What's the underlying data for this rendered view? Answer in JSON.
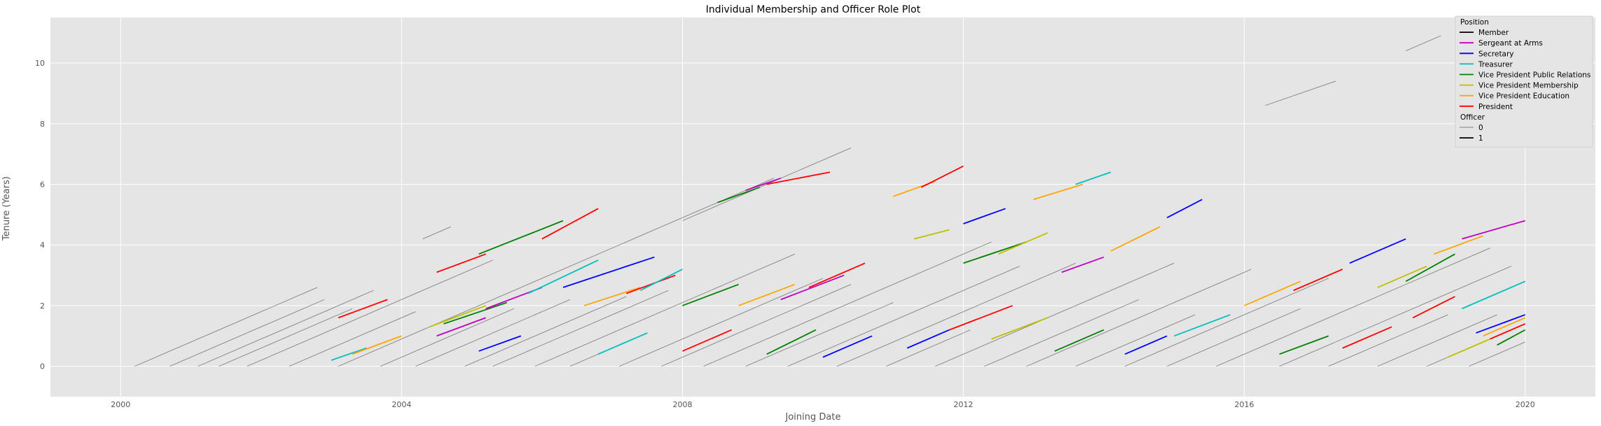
{
  "chart_data": {
    "type": "line",
    "title": "Individual Membership and Officer Role Plot",
    "xlabel": "Joining Date",
    "ylabel": "Tenure (Years)",
    "xlim": [
      1999.0,
      2021.0
    ],
    "ylim": [
      -1.0,
      11.5
    ],
    "xticks": [
      2000,
      2004,
      2008,
      2012,
      2016,
      2020
    ],
    "xtick_labels": [
      "2000",
      "2004",
      "2008",
      "2012",
      "2016",
      "2020"
    ],
    "yticks": [
      0,
      2,
      4,
      6,
      8,
      10
    ],
    "ytick_labels": [
      "0",
      "2",
      "4",
      "6",
      "8",
      "10"
    ],
    "grid": true,
    "legend_placement": "top-right",
    "legend": {
      "position_title": "Position",
      "positions": [
        {
          "label": "Member",
          "color": "#000000"
        },
        {
          "label": "Sergeant at Arms",
          "color": "#bf00bf"
        },
        {
          "label": "Secretary",
          "color": "#0000ff"
        },
        {
          "label": "Treasurer",
          "color": "#00bfbf"
        },
        {
          "label": "Vice President Public Relations",
          "color": "#008000"
        },
        {
          "label": "Vice President Membership",
          "color": "#bfbf00"
        },
        {
          "label": "Vice President Education",
          "color": "#ffa500"
        },
        {
          "label": "President",
          "color": "#ff0000"
        }
      ],
      "officer_title": "Officer",
      "officer": [
        {
          "label": "0",
          "color": "#808080",
          "width": "thin"
        },
        {
          "label": "1",
          "color": "#000000",
          "width": "thick"
        }
      ]
    },
    "member_lines": [
      {
        "x": [
          2000.2,
          2002.8
        ],
        "y": [
          0,
          2.6
        ]
      },
      {
        "x": [
          2000.7,
          2002.9
        ],
        "y": [
          0,
          2.2
        ]
      },
      {
        "x": [
          2001.1,
          2003.6
        ],
        "y": [
          0,
          2.5
        ]
      },
      {
        "x": [
          2001.4,
          2003.3
        ],
        "y": [
          0,
          1.9
        ]
      },
      {
        "x": [
          2001.8,
          2005.3
        ],
        "y": [
          0,
          3.5
        ]
      },
      {
        "x": [
          2002.4,
          2004.2
        ],
        "y": [
          0,
          1.8
        ]
      },
      {
        "x": [
          2003.1,
          2009.3
        ],
        "y": [
          0,
          6.2
        ]
      },
      {
        "x": [
          2003.7,
          2005.6
        ],
        "y": [
          0,
          1.9
        ]
      },
      {
        "x": [
          2004.3,
          2004.7
        ],
        "y": [
          4.2,
          4.6
        ]
      },
      {
        "x": [
          2004.2,
          2006.4
        ],
        "y": [
          0,
          2.2
        ]
      },
      {
        "x": [
          2004.9,
          2007.2
        ],
        "y": [
          0,
          2.3
        ]
      },
      {
        "x": [
          2005.3,
          2007.8
        ],
        "y": [
          0,
          2.5
        ]
      },
      {
        "x": [
          2005.9,
          2009.6
        ],
        "y": [
          0,
          3.7
        ]
      },
      {
        "x": [
          2006.4,
          2007.5
        ],
        "y": [
          0,
          1.1
        ]
      },
      {
        "x": [
          2007.1,
          2010.0
        ],
        "y": [
          0,
          2.9
        ]
      },
      {
        "x": [
          2007.7,
          2010.4
        ],
        "y": [
          0,
          2.7
        ]
      },
      {
        "x": [
          2008.0,
          2010.4
        ],
        "y": [
          4.8,
          7.2
        ]
      },
      {
        "x": [
          2008.3,
          2012.4
        ],
        "y": [
          0,
          4.1
        ]
      },
      {
        "x": [
          2008.9,
          2011.0
        ],
        "y": [
          0,
          2.1
        ]
      },
      {
        "x": [
          2009.5,
          2012.8
        ],
        "y": [
          0,
          3.3
        ]
      },
      {
        "x": [
          2010.2,
          2013.6
        ],
        "y": [
          0,
          3.4
        ]
      },
      {
        "x": [
          2010.9,
          2012.1
        ],
        "y": [
          0,
          1.2
        ]
      },
      {
        "x": [
          2011.6,
          2015.0
        ],
        "y": [
          0,
          3.4
        ]
      },
      {
        "x": [
          2012.3,
          2014.5
        ],
        "y": [
          0,
          2.2
        ]
      },
      {
        "x": [
          2012.9,
          2016.1
        ],
        "y": [
          0,
          3.2
        ]
      },
      {
        "x": [
          2013.6,
          2015.3
        ],
        "y": [
          0,
          1.7
        ]
      },
      {
        "x": [
          2014.3,
          2017.2
        ],
        "y": [
          0,
          2.9
        ]
      },
      {
        "x": [
          2014.9,
          2016.8
        ],
        "y": [
          0,
          1.9
        ]
      },
      {
        "x": [
          2015.6,
          2019.5
        ],
        "y": [
          0,
          3.9
        ]
      },
      {
        "x": [
          2016.3,
          2017.3
        ],
        "y": [
          8.6,
          9.4
        ]
      },
      {
        "x": [
          2016.5,
          2019.8
        ],
        "y": [
          0,
          3.3
        ]
      },
      {
        "x": [
          2017.2,
          2018.9
        ],
        "y": [
          0,
          1.7
        ]
      },
      {
        "x": [
          2017.9,
          2019.6
        ],
        "y": [
          0,
          1.7
        ]
      },
      {
        "x": [
          2018.3,
          2018.8
        ],
        "y": [
          10.4,
          10.9
        ]
      },
      {
        "x": [
          2018.6,
          2019.8
        ],
        "y": [
          0,
          1.2
        ]
      },
      {
        "x": [
          2019.2,
          2020.0
        ],
        "y": [
          0,
          0.8
        ]
      }
    ],
    "role_segments": [
      {
        "position": "Treasurer",
        "x": [
          2003.0,
          2003.5
        ],
        "y": [
          0.2,
          0.6
        ]
      },
      {
        "position": "Vice President Education",
        "x": [
          2003.3,
          2004.0
        ],
        "y": [
          0.4,
          1.0
        ]
      },
      {
        "position": "President",
        "x": [
          2003.1,
          2003.8
        ],
        "y": [
          1.6,
          2.2
        ]
      },
      {
        "position": "Sergeant at Arms",
        "x": [
          2004.5,
          2005.2
        ],
        "y": [
          1.0,
          1.6
        ]
      },
      {
        "position": "Vice President Membership",
        "x": [
          2004.4,
          2005.2
        ],
        "y": [
          1.3,
          2.0
        ]
      },
      {
        "position": "Vice President Public Relations",
        "x": [
          2004.6,
          2005.5
        ],
        "y": [
          1.4,
          2.1
        ]
      },
      {
        "position": "Secretary",
        "x": [
          2005.1,
          2005.7
        ],
        "y": [
          0.5,
          1.0
        ]
      },
      {
        "position": "Sergeant at Arms",
        "x": [
          2005.2,
          2006.0
        ],
        "y": [
          1.9,
          2.6
        ]
      },
      {
        "position": "Treasurer",
        "x": [
          2005.8,
          2006.8
        ],
        "y": [
          2.4,
          3.5
        ]
      },
      {
        "position": "President",
        "x": [
          2004.5,
          2005.2
        ],
        "y": [
          3.1,
          3.7
        ]
      },
      {
        "position": "Vice President Public Relations",
        "x": [
          2005.1,
          2006.3
        ],
        "y": [
          3.7,
          4.8
        ]
      },
      {
        "position": "President",
        "x": [
          2006.0,
          2006.8
        ],
        "y": [
          4.2,
          5.2
        ]
      },
      {
        "position": "Secretary",
        "x": [
          2006.3,
          2007.6
        ],
        "y": [
          2.6,
          3.6
        ]
      },
      {
        "position": "Vice President Education",
        "x": [
          2006.6,
          2007.4
        ],
        "y": [
          2.0,
          2.6
        ]
      },
      {
        "position": "President",
        "x": [
          2007.2,
          2007.9
        ],
        "y": [
          2.4,
          3.0
        ]
      },
      {
        "position": "Treasurer",
        "x": [
          2007.4,
          2008.0
        ],
        "y": [
          2.5,
          3.2
        ]
      },
      {
        "position": "Vice President Public Relations",
        "x": [
          2008.0,
          2008.8
        ],
        "y": [
          2.0,
          2.7
        ]
      },
      {
        "position": "Vice President Education",
        "x": [
          2008.8,
          2009.6
        ],
        "y": [
          2.0,
          2.7
        ]
      },
      {
        "position": "Sergeant at Arms",
        "x": [
          2009.4,
          2010.3
        ],
        "y": [
          2.2,
          3.0
        ]
      },
      {
        "position": "President",
        "x": [
          2009.8,
          2010.6
        ],
        "y": [
          2.6,
          3.4
        ]
      },
      {
        "position": "Vice President Public Relations",
        "x": [
          2008.5,
          2009.1
        ],
        "y": [
          5.4,
          5.9
        ]
      },
      {
        "position": "Sergeant at Arms",
        "x": [
          2008.9,
          2009.4
        ],
        "y": [
          5.8,
          6.2
        ]
      },
      {
        "position": "President",
        "x": [
          2009.2,
          2010.1
        ],
        "y": [
          6.0,
          6.4
        ]
      },
      {
        "position": "Vice President Education",
        "x": [
          2011.0,
          2011.6
        ],
        "y": [
          5.6,
          6.1
        ]
      },
      {
        "position": "President",
        "x": [
          2011.4,
          2012.0
        ],
        "y": [
          5.9,
          6.6
        ]
      },
      {
        "position": "Secretary",
        "x": [
          2012.0,
          2012.6
        ],
        "y": [
          4.7,
          5.2
        ]
      },
      {
        "position": "Vice President Membership",
        "x": [
          2011.3,
          2011.8
        ],
        "y": [
          4.2,
          4.5
        ]
      },
      {
        "position": "Vice President Public Relations",
        "x": [
          2012.0,
          2012.9
        ],
        "y": [
          3.4,
          4.1
        ]
      },
      {
        "position": "Vice President Membership",
        "x": [
          2012.5,
          2013.2
        ],
        "y": [
          3.7,
          4.4
        ]
      },
      {
        "position": "Vice President Education",
        "x": [
          2013.0,
          2013.7
        ],
        "y": [
          5.5,
          6.0
        ]
      },
      {
        "position": "Treasurer",
        "x": [
          2013.6,
          2014.1
        ],
        "y": [
          6.0,
          6.4
        ]
      },
      {
        "position": "Sergeant at Arms",
        "x": [
          2013.4,
          2014.0
        ],
        "y": [
          3.1,
          3.6
        ]
      },
      {
        "position": "Vice President Education",
        "x": [
          2014.1,
          2014.8
        ],
        "y": [
          3.8,
          4.6
        ]
      },
      {
        "position": "Secretary",
        "x": [
          2014.9,
          2015.4
        ],
        "y": [
          4.9,
          5.5
        ]
      },
      {
        "position": "Vice President Education",
        "x": [
          2016.0,
          2016.8
        ],
        "y": [
          2.0,
          2.8
        ]
      },
      {
        "position": "President",
        "x": [
          2016.7,
          2017.4
        ],
        "y": [
          2.5,
          3.2
        ]
      },
      {
        "position": "Secretary",
        "x": [
          2017.5,
          2018.3
        ],
        "y": [
          3.4,
          4.2
        ]
      },
      {
        "position": "Vice President Membership",
        "x": [
          2017.9,
          2018.6
        ],
        "y": [
          2.6,
          3.3
        ]
      },
      {
        "position": "Vice President Public Relations",
        "x": [
          2018.3,
          2019.0
        ],
        "y": [
          2.8,
          3.7
        ]
      },
      {
        "position": "Vice President Education",
        "x": [
          2018.7,
          2019.4
        ],
        "y": [
          3.7,
          4.3
        ]
      },
      {
        "position": "Sergeant at Arms",
        "x": [
          2019.1,
          2020.0
        ],
        "y": [
          4.2,
          4.8
        ]
      },
      {
        "position": "Treasurer",
        "x": [
          2019.1,
          2020.0
        ],
        "y": [
          1.9,
          2.8
        ]
      },
      {
        "position": "President",
        "x": [
          2018.4,
          2019.0
        ],
        "y": [
          1.6,
          2.3
        ]
      },
      {
        "position": "Secretary",
        "x": [
          2019.3,
          2020.0
        ],
        "y": [
          1.1,
          1.7
        ]
      },
      {
        "position": "Vice President Education",
        "x": [
          2019.4,
          2020.0
        ],
        "y": [
          1.0,
          1.6
        ]
      },
      {
        "position": "President",
        "x": [
          2019.5,
          2020.0
        ],
        "y": [
          0.9,
          1.4
        ]
      },
      {
        "position": "Vice President Public Relations",
        "x": [
          2019.6,
          2020.0
        ],
        "y": [
          0.7,
          1.2
        ]
      },
      {
        "position": "Vice President Membership",
        "x": [
          2018.9,
          2019.5
        ],
        "y": [
          0.3,
          0.9
        ]
      },
      {
        "position": "Secretary",
        "x": [
          2011.2,
          2011.8
        ],
        "y": [
          0.6,
          1.2
        ]
      },
      {
        "position": "President",
        "x": [
          2011.8,
          2012.7
        ],
        "y": [
          1.2,
          2.0
        ]
      },
      {
        "position": "Vice President Membership",
        "x": [
          2012.4,
          2013.2
        ],
        "y": [
          0.9,
          1.6
        ]
      },
      {
        "position": "Vice President Public Relations",
        "x": [
          2013.3,
          2014.0
        ],
        "y": [
          0.5,
          1.2
        ]
      },
      {
        "position": "Secretary",
        "x": [
          2014.3,
          2014.9
        ],
        "y": [
          0.4,
          1.0
        ]
      },
      {
        "position": "Treasurer",
        "x": [
          2015.0,
          2015.8
        ],
        "y": [
          1.0,
          1.7
        ]
      },
      {
        "position": "Vice President Public Relations",
        "x": [
          2016.5,
          2017.2
        ],
        "y": [
          0.4,
          1.0
        ]
      },
      {
        "position": "President",
        "x": [
          2017.4,
          2018.1
        ],
        "y": [
          0.6,
          1.3
        ]
      },
      {
        "position": "Treasurer",
        "x": [
          2006.8,
          2007.5
        ],
        "y": [
          0.4,
          1.1
        ]
      },
      {
        "position": "President",
        "x": [
          2008.0,
          2008.7
        ],
        "y": [
          0.5,
          1.2
        ]
      },
      {
        "position": "Vice President Public Relations",
        "x": [
          2009.2,
          2009.9
        ],
        "y": [
          0.4,
          1.2
        ]
      },
      {
        "position": "Secretary",
        "x": [
          2010.0,
          2010.7
        ],
        "y": [
          0.3,
          1.0
        ]
      }
    ]
  }
}
